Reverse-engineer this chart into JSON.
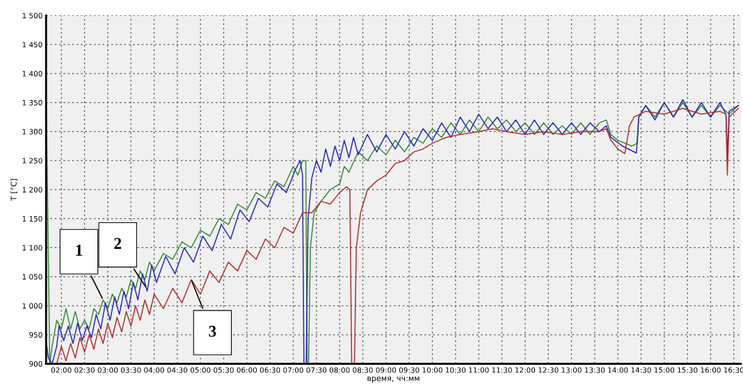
{
  "chart_data": {
    "type": "line",
    "xlabel": "время, чч:мм",
    "ylabel": "T [°C]",
    "xlim": [
      1.67,
      16.65
    ],
    "ylim": [
      900,
      1500
    ],
    "xticks": [
      {
        "value": 2,
        "label": "02:00"
      },
      {
        "value": 2.5,
        "label": "02:30"
      },
      {
        "value": 3,
        "label": "03:00"
      },
      {
        "value": 3.5,
        "label": "03:30"
      },
      {
        "value": 4,
        "label": "04:00"
      },
      {
        "value": 4.5,
        "label": "04:30"
      },
      {
        "value": 5,
        "label": "05:00"
      },
      {
        "value": 5.5,
        "label": "05:30"
      },
      {
        "value": 6,
        "label": "06:00"
      },
      {
        "value": 6.5,
        "label": "06:30"
      },
      {
        "value": 7,
        "label": "07:00"
      },
      {
        "value": 7.5,
        "label": "07:30"
      },
      {
        "value": 8,
        "label": "08:00"
      },
      {
        "value": 8.5,
        "label": "08:30"
      },
      {
        "value": 9,
        "label": "09:00"
      },
      {
        "value": 9.5,
        "label": "09:30"
      },
      {
        "value": 10,
        "label": "10:00"
      },
      {
        "value": 10.5,
        "label": "10:30"
      },
      {
        "value": 11,
        "label": "11:00"
      },
      {
        "value": 11.5,
        "label": "11:30"
      },
      {
        "value": 12,
        "label": "12:00"
      },
      {
        "value": 12.5,
        "label": "12:30"
      },
      {
        "value": 13,
        "label": "13:00"
      },
      {
        "value": 13.5,
        "label": "13:30"
      },
      {
        "value": 14,
        "label": "14:00"
      },
      {
        "value": 14.5,
        "label": "14:30"
      },
      {
        "value": 15,
        "label": "15:00"
      },
      {
        "value": 15.5,
        "label": "15:30"
      },
      {
        "value": 16,
        "label": "16:00"
      },
      {
        "value": 16.5,
        "label": "16:30"
      }
    ],
    "yticks": [
      900,
      950,
      {
        "value": 1000,
        "label": "1 000"
      },
      {
        "value": 1050,
        "label": "1 050"
      },
      {
        "value": 1100,
        "label": "1 100"
      },
      {
        "value": 1150,
        "label": "1 150"
      },
      {
        "value": 1200,
        "label": "1 200"
      },
      {
        "value": 1250,
        "label": "1 250"
      },
      {
        "value": 1300,
        "label": "1 300"
      },
      {
        "value": 1350,
        "label": "1 350"
      },
      {
        "value": 1400,
        "label": "1 400"
      },
      {
        "value": 1450,
        "label": "1 450"
      },
      {
        "value": 1500,
        "label": "1 500"
      }
    ],
    "grid": true,
    "line_style": "solid",
    "marker": "none",
    "annotations": [
      {
        "text": "1",
        "x": 2.9,
        "y": 1010
      },
      {
        "text": "2",
        "x": 3.84,
        "y": 1030
      },
      {
        "text": "3",
        "x": 4.8,
        "y": 1045
      }
    ],
    "series": [
      {
        "color": "#3a8a3a",
        "x": [
          1.67,
          1.7,
          1.75,
          1.8,
          1.9,
          2.0,
          2.1,
          2.2,
          2.3,
          2.4,
          2.5,
          2.6,
          2.7,
          2.8,
          2.9,
          3.0,
          3.1,
          3.2,
          3.3,
          3.4,
          3.5,
          3.6,
          3.7,
          3.8,
          3.9,
          4.0,
          4.2,
          4.4,
          4.6,
          4.8,
          5.0,
          5.2,
          5.4,
          5.6,
          5.8,
          6.0,
          6.2,
          6.4,
          6.6,
          6.8,
          7.0,
          7.1,
          7.2,
          7.27,
          7.3,
          7.33,
          7.37,
          7.45,
          7.6,
          7.8,
          8.0,
          8.1,
          8.2,
          8.4,
          8.6,
          8.8,
          9.0,
          9.2,
          9.4,
          9.6,
          9.8,
          10.0,
          10.2,
          10.4,
          10.6,
          10.8,
          11.0,
          11.2,
          11.4,
          11.6,
          11.8,
          12.0,
          12.2,
          12.4,
          12.6,
          12.8,
          13.0,
          13.2,
          13.4,
          13.6,
          13.75,
          13.85,
          14.0,
          14.3,
          14.42,
          14.45,
          14.6,
          14.8,
          15.0,
          15.2,
          15.4,
          15.6,
          15.8,
          16.0,
          16.2,
          16.4,
          16.6
        ],
        "values": [
          1360,
          1200,
          900,
          930,
          975,
          960,
          995,
          960,
          990,
          960,
          975,
          960,
          995,
          985,
          1010,
          995,
          1020,
          1005,
          1030,
          1015,
          1045,
          1030,
          1060,
          1045,
          1075,
          1060,
          1090,
          1080,
          1110,
          1100,
          1130,
          1120,
          1150,
          1140,
          1175,
          1165,
          1195,
          1185,
          1215,
          1205,
          1240,
          1225,
          1250,
          1250,
          900,
          900,
          1100,
          1160,
          1180,
          1200,
          1210,
          1240,
          1230,
          1265,
          1250,
          1275,
          1260,
          1285,
          1265,
          1290,
          1280,
          1305,
          1290,
          1315,
          1295,
          1320,
          1300,
          1325,
          1305,
          1320,
          1300,
          1315,
          1295,
          1315,
          1295,
          1310,
          1295,
          1315,
          1295,
          1315,
          1320,
          1295,
          1285,
          1275,
          1280,
          1325,
          1345,
          1325,
          1350,
          1325,
          1350,
          1325,
          1345,
          1325,
          1345,
          1330,
          1345
        ]
      },
      {
        "color": "#2a2ab4",
        "x": [
          1.67,
          1.72,
          1.8,
          1.9,
          1.95,
          2.05,
          2.15,
          2.25,
          2.35,
          2.45,
          2.55,
          2.65,
          2.75,
          2.85,
          2.95,
          3.05,
          3.15,
          3.25,
          3.35,
          3.45,
          3.55,
          3.65,
          3.75,
          3.85,
          3.95,
          4.05,
          4.25,
          4.45,
          4.65,
          4.85,
          5.05,
          5.25,
          5.45,
          5.65,
          5.85,
          6.05,
          6.25,
          6.45,
          6.65,
          6.85,
          7.05,
          7.15,
          7.2,
          7.23,
          7.28,
          7.32,
          7.4,
          7.5,
          7.6,
          7.7,
          7.8,
          7.9,
          8.0,
          8.1,
          8.2,
          8.3,
          8.4,
          8.6,
          8.8,
          9.0,
          9.2,
          9.4,
          9.6,
          9.8,
          10.0,
          10.2,
          10.4,
          10.6,
          10.8,
          11.0,
          11.2,
          11.4,
          11.6,
          11.8,
          12.0,
          12.2,
          12.4,
          12.6,
          12.8,
          13.0,
          13.2,
          13.4,
          13.6,
          13.75,
          13.85,
          14.1,
          14.4,
          14.45,
          14.6,
          14.8,
          15.0,
          15.2,
          15.4,
          15.6,
          15.8,
          16.0,
          16.2,
          16.33,
          16.36,
          16.4,
          16.6
        ],
        "values": [
          940,
          910,
          900,
          930,
          965,
          940,
          965,
          935,
          970,
          940,
          965,
          945,
          985,
          960,
          1005,
          975,
          1015,
          985,
          1025,
          995,
          1040,
          1010,
          1055,
          1025,
          1070,
          1040,
          1085,
          1055,
          1100,
          1075,
          1120,
          1095,
          1140,
          1115,
          1165,
          1145,
          1185,
          1170,
          1210,
          1195,
          1235,
          1250,
          1225,
          900,
          900,
          1150,
          1220,
          1250,
          1230,
          1270,
          1240,
          1275,
          1250,
          1285,
          1255,
          1290,
          1260,
          1295,
          1265,
          1295,
          1270,
          1300,
          1275,
          1305,
          1285,
          1315,
          1290,
          1325,
          1300,
          1330,
          1305,
          1325,
          1300,
          1320,
          1295,
          1320,
          1295,
          1315,
          1295,
          1315,
          1295,
          1315,
          1300,
          1310,
          1290,
          1275,
          1263,
          1325,
          1345,
          1320,
          1350,
          1325,
          1355,
          1325,
          1350,
          1325,
          1350,
          1330,
          1260,
          1335,
          1345
        ]
      },
      {
        "color": "#b03030",
        "x": [
          1.9,
          2.0,
          2.1,
          2.2,
          2.3,
          2.4,
          2.5,
          2.6,
          2.7,
          2.8,
          2.9,
          3.0,
          3.1,
          3.2,
          3.3,
          3.4,
          3.5,
          3.6,
          3.7,
          3.8,
          3.9,
          4.0,
          4.2,
          4.4,
          4.6,
          4.8,
          5.0,
          5.2,
          5.4,
          5.6,
          5.8,
          6.0,
          6.2,
          6.4,
          6.6,
          6.8,
          7.0,
          7.2,
          7.4,
          7.6,
          7.8,
          8.0,
          8.15,
          8.22,
          8.26,
          8.32,
          8.36,
          8.45,
          8.6,
          8.8,
          9.0,
          9.2,
          9.4,
          9.6,
          9.8,
          10.0,
          10.3,
          10.6,
          11.0,
          11.3,
          11.6,
          12.0,
          12.4,
          12.8,
          13.2,
          13.6,
          13.75,
          13.85,
          14.0,
          14.15,
          14.25,
          14.35,
          14.6,
          15.0,
          15.4,
          15.8,
          16.2,
          16.33,
          16.36,
          16.4,
          16.6
        ],
        "values": [
          900,
          930,
          905,
          935,
          910,
          945,
          920,
          950,
          925,
          960,
          935,
          970,
          945,
          980,
          955,
          990,
          965,
          1000,
          975,
          1010,
          985,
          1020,
          995,
          1030,
          1005,
          1045,
          1020,
          1060,
          1040,
          1075,
          1060,
          1095,
          1080,
          1115,
          1100,
          1135,
          1125,
          1160,
          1160,
          1180,
          1175,
          1195,
          1205,
          1200,
          900,
          900,
          1100,
          1160,
          1200,
          1215,
          1225,
          1245,
          1250,
          1265,
          1270,
          1280,
          1290,
          1295,
          1300,
          1305,
          1300,
          1295,
          1300,
          1295,
          1300,
          1300,
          1305,
          1285,
          1270,
          1262,
          1310,
          1325,
          1335,
          1330,
          1340,
          1330,
          1335,
          1330,
          1225,
          1325,
          1340
        ]
      }
    ]
  }
}
